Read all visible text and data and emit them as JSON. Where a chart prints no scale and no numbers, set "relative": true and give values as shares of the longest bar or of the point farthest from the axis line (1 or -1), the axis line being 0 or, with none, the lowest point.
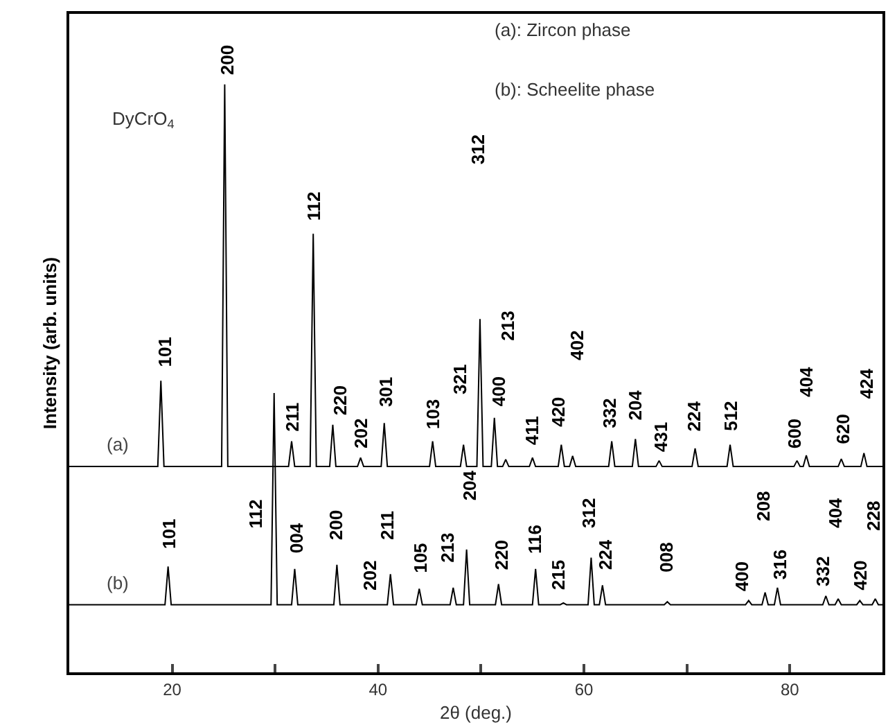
{
  "chart_data": {
    "type": "line",
    "relative": true,
    "xlabel": "2θ (deg.)",
    "ylabel": "Intensity (arb. units)",
    "xlim": [
      10,
      89
    ],
    "xticks": [
      20,
      {
        "value": 30,
        "label": null
      },
      40,
      {
        "value": 50,
        "label": null
      },
      60,
      {
        "value": 70,
        "label": null
      },
      80
    ],
    "legend": false,
    "marker": "none",
    "line_style": "solid",
    "series": [
      {
        "name": "(a)",
        "color": "#000000",
        "x": [
          10,
          18.6,
          18.9,
          19.2,
          24.8,
          25.1,
          25.4,
          31.3,
          31.6,
          31.9,
          33.4,
          33.7,
          34.0,
          35.3,
          35.6,
          35.9,
          38.0,
          38.3,
          38.6,
          40.3,
          40.6,
          40.9,
          45.0,
          45.3,
          45.6,
          48.0,
          48.3,
          48.6,
          49.6,
          49.9,
          50.2,
          51.0,
          51.3,
          51.6,
          52.1,
          52.4,
          52.7,
          54.7,
          55.0,
          55.3,
          57.5,
          57.8,
          58.1,
          58.6,
          58.9,
          59.2,
          62.4,
          62.7,
          63.0,
          64.7,
          65.0,
          65.3,
          67.0,
          67.3,
          67.6,
          70.5,
          70.8,
          71.1,
          73.9,
          74.2,
          74.5,
          80.4,
          80.7,
          81.0,
          81.3,
          81.6,
          81.9,
          84.7,
          85.0,
          85.3,
          86.9,
          87.2,
          87.5,
          89
        ],
        "values": [
          0.35,
          0.35,
          0.496,
          0.35,
          0.35,
          1.0,
          0.35,
          0.35,
          0.393,
          0.35,
          0.35,
          0.746,
          0.35,
          0.35,
          0.421,
          0.35,
          0.35,
          0.365,
          0.35,
          0.35,
          0.424,
          0.35,
          0.35,
          0.393,
          0.35,
          0.35,
          0.387,
          0.35,
          0.35,
          0.601,
          0.35,
          0.35,
          0.433,
          0.35,
          0.35,
          0.362,
          0.35,
          0.35,
          0.365,
          0.35,
          0.35,
          0.387,
          0.35,
          0.35,
          0.368,
          0.35,
          0.35,
          0.393,
          0.35,
          0.35,
          0.397,
          0.35,
          0.35,
          0.36,
          0.35,
          0.35,
          0.381,
          0.35,
          0.35,
          0.387,
          0.35,
          0.35,
          0.36,
          0.35,
          0.35,
          0.369,
          0.35,
          0.35,
          0.363,
          0.35,
          0.35,
          0.373,
          0.35,
          0.35
        ]
      },
      {
        "name": "(b)",
        "color": "#000000",
        "x": [
          10,
          19.3,
          19.6,
          19.9,
          29.6,
          29.9,
          30.2,
          31.6,
          31.9,
          32.2,
          35.7,
          36.0,
          36.3,
          40.9,
          41.2,
          41.5,
          43.7,
          44.0,
          44.3,
          47.0,
          47.3,
          47.6,
          48.3,
          48.6,
          48.9,
          51.4,
          51.7,
          52.0,
          55.0,
          55.3,
          55.6,
          57.7,
          58.0,
          58.3,
          60.4,
          60.7,
          61.0,
          61.5,
          61.8,
          62.1,
          67.8,
          68.1,
          68.4,
          75.7,
          76.0,
          76.3,
          77.3,
          77.6,
          77.9,
          78.5,
          78.8,
          79.1,
          83.2,
          83.5,
          83.8,
          84.4,
          84.7,
          85.0,
          86.5,
          86.8,
          87.1,
          88.0,
          88.3,
          88.6,
          89
        ],
        "values": [
          0.115,
          0.115,
          0.18,
          0.115,
          0.115,
          0.475,
          0.115,
          0.115,
          0.176,
          0.115,
          0.115,
          0.183,
          0.115,
          0.115,
          0.167,
          0.115,
          0.115,
          0.142,
          0.115,
          0.115,
          0.144,
          0.115,
          0.115,
          0.209,
          0.115,
          0.115,
          0.15,
          0.115,
          0.115,
          0.176,
          0.115,
          0.115,
          0.118,
          0.115,
          0.115,
          0.195,
          0.115,
          0.115,
          0.148,
          0.115,
          0.115,
          0.12,
          0.115,
          0.115,
          0.122,
          0.115,
          0.115,
          0.136,
          0.115,
          0.115,
          0.144,
          0.115,
          0.115,
          0.13,
          0.115,
          0.115,
          0.125,
          0.115,
          0.115,
          0.122,
          0.115,
          0.115,
          0.125,
          0.115,
          0.115
        ]
      }
    ],
    "annotations": [
      "DyCrO$_{4}$",
      "(a): Zircon phase",
      "(b): Scheelite phase",
      {
        "text": "101",
        "x": 18.9,
        "y": 0.496
      },
      {
        "text": "200",
        "x": 25.1,
        "y": 1.0
      },
      {
        "text": "112",
        "x": 33.7,
        "y": 0.746
      },
      {
        "text": "211",
        "x": 31.6,
        "y": 0.393
      },
      {
        "text": "220",
        "x": 35.6,
        "y": 0.421
      },
      {
        "text": "202",
        "x": 38.3,
        "y": 0.365
      },
      {
        "text": "301",
        "x": 40.6,
        "y": 0.424
      },
      {
        "text": "103",
        "x": 45.3,
        "y": 0.393
      },
      {
        "text": "321",
        "x": 48.3,
        "y": 0.387
      },
      "312",
      "213",
      {
        "text": "400",
        "x": 51.3,
        "y": 0.433
      },
      {
        "text": "411",
        "x": 55.0,
        "y": 0.365
      },
      {
        "text": "420",
        "x": 57.8,
        "y": 0.387
      },
      "402",
      {
        "text": "332",
        "x": 62.7,
        "y": 0.393
      },
      {
        "text": "204",
        "x": 65.0,
        "y": 0.397
      },
      {
        "text": "431",
        "x": 67.3,
        "y": 0.36
      },
      {
        "text": "224",
        "x": 70.8,
        "y": 0.381
      },
      {
        "text": "512",
        "x": 74.2,
        "y": 0.387
      },
      {
        "text": "600",
        "x": 80.7,
        "y": 0.36
      },
      {
        "text": "404",
        "x": 81.6,
        "y": 0.369
      },
      {
        "text": "620",
        "x": 85.0,
        "y": 0.363
      },
      "424",
      {
        "text": "101",
        "x": 19.6,
        "y": 0.18
      },
      "112",
      {
        "text": "004",
        "x": 31.9,
        "y": 0.176
      },
      {
        "text": "200",
        "x": 36.0,
        "y": 0.183
      },
      {
        "text": "202",
        "x": 41.2,
        "y": 0.167
      },
      {
        "text": "211",
        "x": 41.2,
        "y": 0.167
      },
      {
        "text": "105",
        "x": 44.0,
        "y": 0.142
      },
      "213",
      {
        "text": "204",
        "x": 48.6,
        "y": 0.209
      },
      {
        "text": "220",
        "x": 51.7,
        "y": 0.15
      },
      {
        "text": "116",
        "x": 55.3,
        "y": 0.176
      },
      {
        "text": "215",
        "x": 58.0,
        "y": 0.118
      },
      {
        "text": "312",
        "x": 60.7,
        "y": 0.195
      },
      {
        "text": "224",
        "x": 61.8,
        "y": 0.148
      },
      {
        "text": "008",
        "x": 68.1,
        "y": 0.12
      },
      {
        "text": "400",
        "x": 76.0,
        "y": 0.122
      },
      "208",
      {
        "text": "316",
        "x": 78.8,
        "y": 0.144
      },
      {
        "text": "332",
        "x": 83.5,
        "y": 0.13
      },
      "404",
      {
        "text": "420",
        "x": 86.8,
        "y": 0.122
      },
      "228"
    ]
  }
}
